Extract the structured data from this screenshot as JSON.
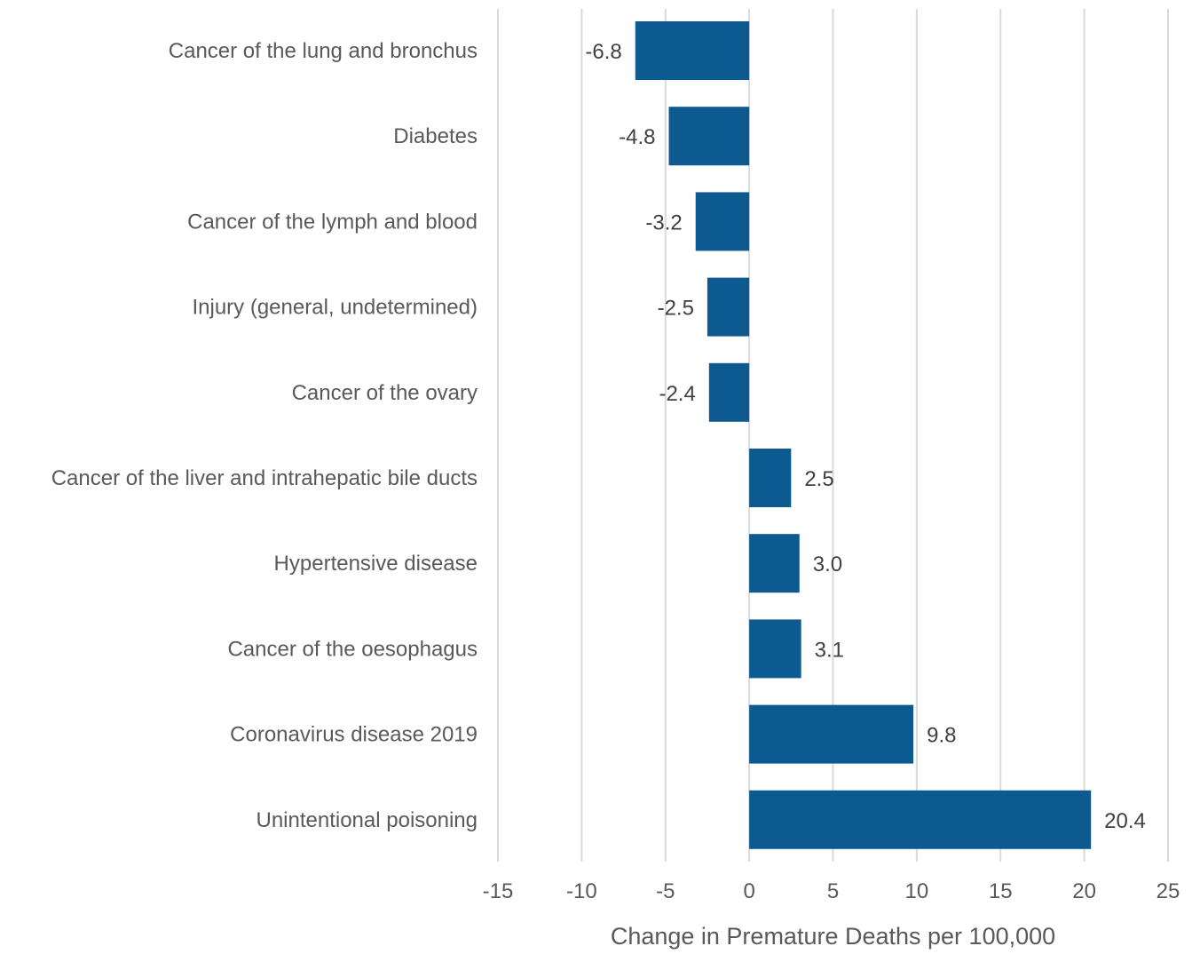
{
  "chart_data": {
    "type": "bar",
    "orientation": "horizontal",
    "title": "",
    "xlabel": "Change in Premature Deaths per 100,000",
    "ylabel": "",
    "xlim": [
      -15,
      25
    ],
    "xticks": [
      -15,
      -10,
      -5,
      0,
      5,
      10,
      15,
      20,
      25
    ],
    "grid": true,
    "categories": [
      "Cancer of the lung and bronchus",
      "Diabetes",
      "Cancer of the lymph and blood",
      "Injury (general, undetermined)",
      "Cancer of the ovary",
      "Cancer of the liver and intrahepatic bile ducts",
      "Hypertensive disease",
      "Cancer of the oesophagus",
      "Coronavirus disease 2019",
      "Unintentional poisoning"
    ],
    "values": [
      -6.8,
      -4.8,
      -3.2,
      -2.5,
      -2.4,
      2.5,
      3.0,
      3.1,
      9.8,
      20.4
    ],
    "value_labels": [
      "-6.8",
      "-4.8",
      "-3.2",
      "-2.5",
      "-2.4",
      "2.5",
      "3.0",
      "3.1",
      "9.8",
      "20.4"
    ],
    "bar_color": "#0d5a91"
  }
}
